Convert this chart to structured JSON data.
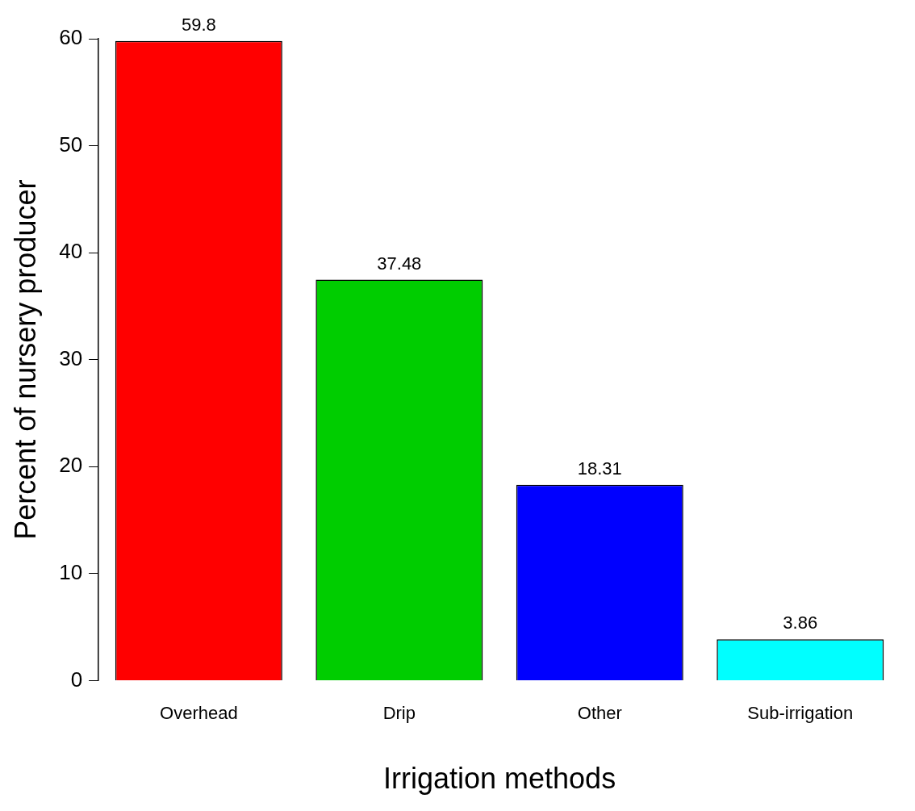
{
  "chart_data": {
    "type": "bar",
    "xlabel": "Irrigation methods",
    "ylabel": "Percent of nursery producer",
    "categories": [
      "Overhead",
      "Drip",
      "Other",
      "Sub-irrigation"
    ],
    "values": [
      59.8,
      37.48,
      18.31,
      3.86
    ],
    "colors": [
      "#ff0000",
      "#00cd00",
      "#0000ff",
      "#00ffff"
    ],
    "ylim": [
      0,
      60
    ],
    "yticks": [
      0,
      10,
      20,
      30,
      40,
      50,
      60
    ],
    "grid": false,
    "legend": false,
    "data_labels": true
  }
}
